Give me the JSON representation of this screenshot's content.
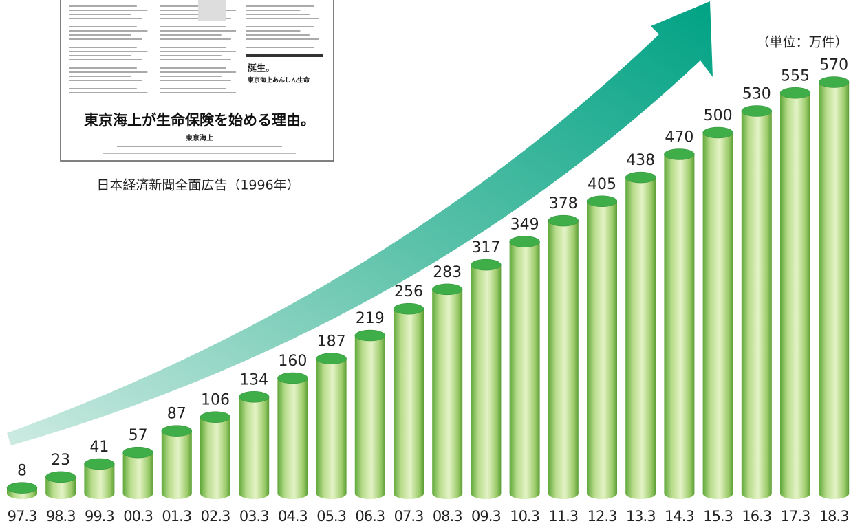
{
  "chart_data": {
    "type": "bar",
    "unit_label": "（単位：万件）",
    "inset_caption": "日本経済新聞全面広告（1996年）",
    "inset_headline": "東京海上が生命保険を始める理由。",
    "inset_signature": "東京海上",
    "inset_side_title": "誕生。",
    "inset_side_subtitle": "東京海上あんしん生命",
    "categories": [
      "97.3",
      "98.3",
      "99.3",
      "00.3",
      "01.3",
      "02.3",
      "03.3",
      "04.3",
      "05.3",
      "06.3",
      "07.3",
      "08.3",
      "09.3",
      "10.3",
      "11.3",
      "12.3",
      "13.3",
      "14.3",
      "15.3",
      "16.3",
      "17.3",
      "18.3"
    ],
    "values": [
      8,
      23,
      41,
      57,
      87,
      106,
      134,
      160,
      187,
      219,
      256,
      283,
      317,
      349,
      378,
      405,
      438,
      470,
      500,
      530,
      555,
      570
    ],
    "color": "#3fae49"
  }
}
